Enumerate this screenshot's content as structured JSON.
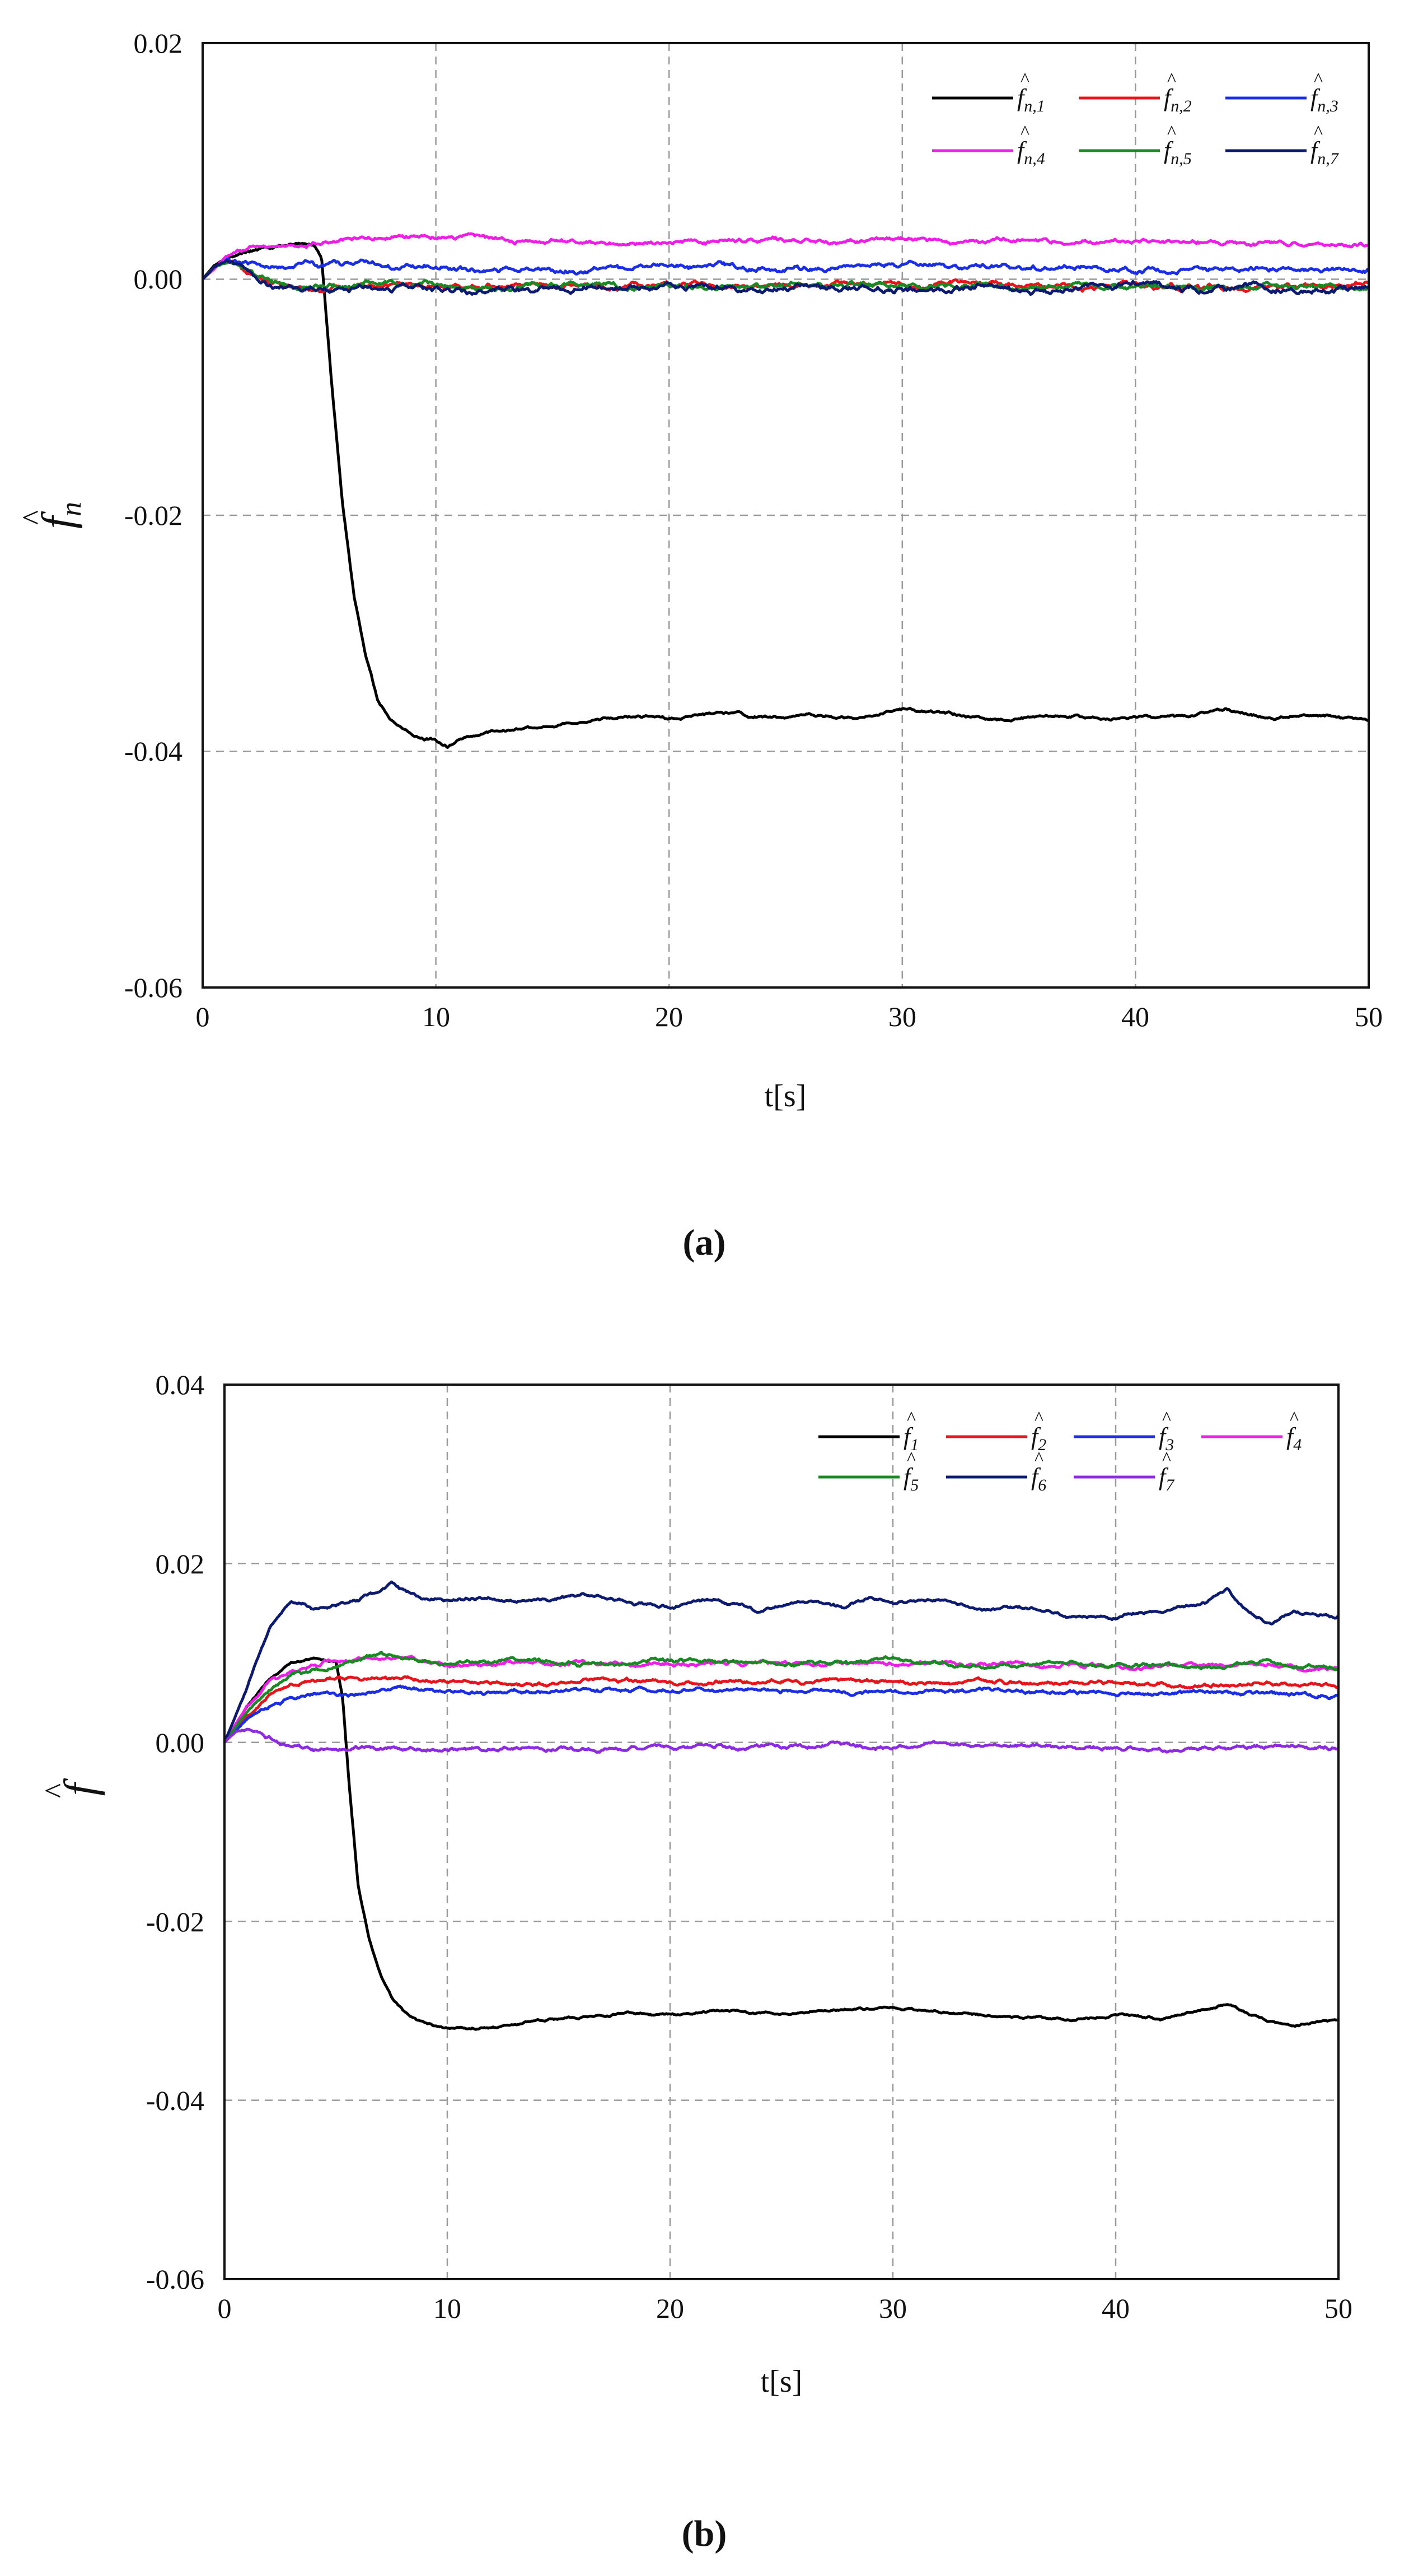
{
  "chart_data": [
    {
      "type": "line",
      "panel": "(a)",
      "panel_label": "(a)",
      "ylabel_symbol": "f",
      "ylabel_sub": "n",
      "xlabel": "t[s]",
      "xlim": [
        0,
        50
      ],
      "ylim": [
        -0.06,
        0.02
      ],
      "xticks": [
        "0",
        "10",
        "20",
        "30",
        "40",
        "50"
      ],
      "yticks": [
        "0.02",
        "0.00",
        "-0.02",
        "-0.04",
        "-0.06"
      ],
      "grid": true,
      "legend_position": "top-right",
      "series": [
        {
          "name": "f̂n,1",
          "label": "f",
          "sub": "n,1",
          "color": "#000000",
          "x": [
            0,
            0.5,
            1,
            2,
            3,
            4,
            4.8,
            5.1,
            5.5,
            6,
            6.5,
            7,
            7.5,
            8,
            9,
            10,
            10.5,
            11,
            12,
            14,
            16,
            18,
            20,
            22,
            24,
            26,
            28,
            30,
            32,
            34,
            36,
            38,
            40,
            42,
            44,
            46,
            48,
            50
          ],
          "y": [
            0,
            0.0012,
            0.0018,
            0.0025,
            0.0028,
            0.003,
            0.003,
            0.002,
            -0.008,
            -0.019,
            -0.027,
            -0.032,
            -0.0355,
            -0.037,
            -0.0385,
            -0.039,
            -0.0395,
            -0.039,
            -0.0385,
            -0.038,
            -0.0375,
            -0.037,
            -0.0372,
            -0.0368,
            -0.0371,
            -0.0369,
            -0.0372,
            -0.0365,
            -0.0368,
            -0.0373,
            -0.0371,
            -0.0373,
            -0.0371,
            -0.0373,
            -0.0367,
            -0.0372,
            -0.0371,
            -0.0374
          ],
          "noise": 0.0004
        },
        {
          "name": "f̂n,2",
          "label": "f",
          "sub": "n,2",
          "color": "#e8141b",
          "x": [
            0,
            0.5,
            1,
            1.5,
            2,
            3,
            5,
            10,
            20,
            30,
            40,
            50
          ],
          "y": [
            0,
            0.001,
            0.0015,
            0.0012,
            0.0005,
            -0.0003,
            -0.0005,
            -0.0005,
            -0.0005,
            -0.0005,
            -0.0005,
            -0.0005
          ],
          "noise": 0.0007
        },
        {
          "name": "f̂n,3",
          "label": "f",
          "sub": "n,3",
          "color": "#1a2ee6",
          "x": [
            0,
            0.5,
            1,
            1.5,
            2,
            3,
            5,
            10,
            20,
            30,
            40,
            50
          ],
          "y": [
            0,
            0.001,
            0.0018,
            0.0015,
            0.0012,
            0.001,
            0.0012,
            0.0009,
            0.0009,
            0.001,
            0.0009,
            0.0008
          ],
          "noise": 0.0007
        },
        {
          "name": "f̂n,4",
          "label": "f",
          "sub": "n,4",
          "color": "#ee1ee8",
          "x": [
            0,
            1,
            2,
            3,
            4,
            5,
            6,
            8,
            10,
            20,
            30,
            40,
            50
          ],
          "y": [
            0,
            0.0018,
            0.0025,
            0.0028,
            0.0029,
            0.003,
            0.0033,
            0.0035,
            0.0033,
            0.0032,
            0.0033,
            0.0032,
            0.003
          ],
          "noise": 0.0006
        },
        {
          "name": "f̂n,5",
          "label": "f",
          "sub": "n,5",
          "color": "#198a23",
          "x": [
            0,
            0.5,
            1,
            1.5,
            2,
            3,
            5,
            10,
            20,
            30,
            40,
            50
          ],
          "y": [
            0,
            0.001,
            0.0015,
            0.0012,
            0.0004,
            -0.0004,
            -0.0006,
            -0.0006,
            -0.0006,
            -0.0006,
            -0.0006,
            -0.0006
          ],
          "noise": 0.0007
        },
        {
          "name": "f̂n,7",
          "label": "f",
          "sub": "n,7",
          "color": "#0c1a72",
          "x": [
            0,
            0.5,
            1,
            1.5,
            2,
            3,
            5,
            10,
            20,
            30,
            40,
            50
          ],
          "y": [
            0,
            0.001,
            0.0016,
            0.0012,
            0.0002,
            -0.0005,
            -0.0007,
            -0.0007,
            -0.0007,
            -0.0007,
            -0.0007,
            -0.0007
          ],
          "noise": 0.0008
        }
      ]
    },
    {
      "type": "line",
      "panel": "(b)",
      "panel_label": "(b)",
      "ylabel_symbol": "f",
      "ylabel_sub": "",
      "xlabel": "t[s]",
      "xlim": [
        0,
        50
      ],
      "ylim": [
        -0.06,
        0.04
      ],
      "xticks": [
        "0",
        "10",
        "20",
        "30",
        "40",
        "50"
      ],
      "yticks": [
        "0.04",
        "0.02",
        "0.00",
        "-0.02",
        "-0.04",
        "-0.06"
      ],
      "grid": true,
      "legend_position": "top-right",
      "series": [
        {
          "name": "f̂1",
          "label": "f",
          "sub": "1",
          "color": "#000000",
          "x": [
            0,
            0.5,
            1,
            2,
            3,
            4,
            5,
            5.3,
            5.6,
            6,
            6.5,
            7,
            7.5,
            8,
            9,
            10,
            11,
            12,
            14,
            16,
            18,
            20,
            22,
            24,
            26,
            28,
            30,
            32,
            34,
            36,
            38,
            40,
            42,
            44,
            45,
            46,
            48,
            50
          ],
          "y": [
            0,
            0.002,
            0.004,
            0.007,
            0.009,
            0.0093,
            0.009,
            0.005,
            -0.005,
            -0.016,
            -0.022,
            -0.026,
            -0.0285,
            -0.03,
            -0.0315,
            -0.032,
            -0.032,
            -0.0318,
            -0.031,
            -0.0308,
            -0.0302,
            -0.0305,
            -0.03,
            -0.0303,
            -0.03,
            -0.0298,
            -0.0296,
            -0.0302,
            -0.0305,
            -0.0308,
            -0.031,
            -0.0305,
            -0.031,
            -0.0298,
            -0.0292,
            -0.0305,
            -0.0318,
            -0.031
          ],
          "noise": 0.0004
        },
        {
          "name": "f̂2",
          "label": "f",
          "sub": "2",
          "color": "#e8141b",
          "x": [
            0,
            1,
            2,
            3,
            5,
            8,
            10,
            20,
            30,
            40,
            50
          ],
          "y": [
            0,
            0.003,
            0.005,
            0.0062,
            0.0068,
            0.0072,
            0.0068,
            0.0068,
            0.0068,
            0.0066,
            0.0062
          ],
          "noise": 0.0007
        },
        {
          "name": "f̂3",
          "label": "f",
          "sub": "3",
          "color": "#1a2ee6",
          "x": [
            0,
            1,
            2,
            3,
            5,
            8,
            10,
            20,
            30,
            40,
            50
          ],
          "y": [
            0,
            0.0025,
            0.004,
            0.005,
            0.0055,
            0.006,
            0.0057,
            0.0058,
            0.0058,
            0.0056,
            0.0052
          ],
          "noise": 0.0007
        },
        {
          "name": "f̂4",
          "label": "f",
          "sub": "4",
          "color": "#ee1ee8",
          "x": [
            0,
            1,
            2,
            3,
            5,
            8,
            10,
            20,
            30,
            40,
            50
          ],
          "y": [
            0,
            0.004,
            0.0068,
            0.008,
            0.0088,
            0.0092,
            0.0088,
            0.0088,
            0.0088,
            0.0086,
            0.0082
          ],
          "noise": 0.0007
        },
        {
          "name": "f̂5",
          "label": "f",
          "sub": "5",
          "color": "#198a23",
          "x": [
            0,
            1,
            2,
            3,
            5,
            7,
            8,
            10,
            20,
            30,
            40,
            50
          ],
          "y": [
            0,
            0.0035,
            0.0062,
            0.0075,
            0.0085,
            0.0098,
            0.0095,
            0.0088,
            0.0088,
            0.009,
            0.0087,
            0.0083
          ],
          "noise": 0.0007
        },
        {
          "name": "f̂6",
          "label": "f",
          "sub": "6",
          "color": "#0c1a72",
          "x": [
            0,
            0.5,
            1,
            1.5,
            2,
            2.5,
            3,
            3.5,
            4,
            5,
            6,
            7,
            7.5,
            8,
            9,
            10,
            12,
            14,
            16,
            18,
            20,
            22,
            24,
            26,
            28,
            29,
            30,
            32,
            34,
            36,
            38,
            40,
            42,
            44,
            45,
            46,
            47,
            48,
            50
          ],
          "y": [
            0,
            0.003,
            0.006,
            0.0095,
            0.0125,
            0.0145,
            0.0155,
            0.0155,
            0.015,
            0.0152,
            0.0158,
            0.017,
            0.018,
            0.0172,
            0.0162,
            0.016,
            0.0162,
            0.0158,
            0.0165,
            0.0155,
            0.0152,
            0.0162,
            0.0148,
            0.016,
            0.0152,
            0.0163,
            0.0155,
            0.016,
            0.0145,
            0.0152,
            0.0142,
            0.0138,
            0.0148,
            0.0158,
            0.0172,
            0.0145,
            0.0132,
            0.0148,
            0.014
          ],
          "noise": 0.0006
        },
        {
          "name": "f̂7",
          "label": "f",
          "sub": "7",
          "color": "#8e2be2",
          "x": [
            0,
            0.5,
            1,
            2,
            3,
            4,
            5,
            10,
            20,
            30,
            40,
            50
          ],
          "y": [
            0,
            0.0012,
            0.0015,
            0.0005,
            -0.0005,
            -0.0008,
            -0.0008,
            -0.0008,
            -0.0006,
            -0.0004,
            -0.0005,
            -0.0008
          ],
          "noise": 0.0007
        }
      ]
    }
  ]
}
